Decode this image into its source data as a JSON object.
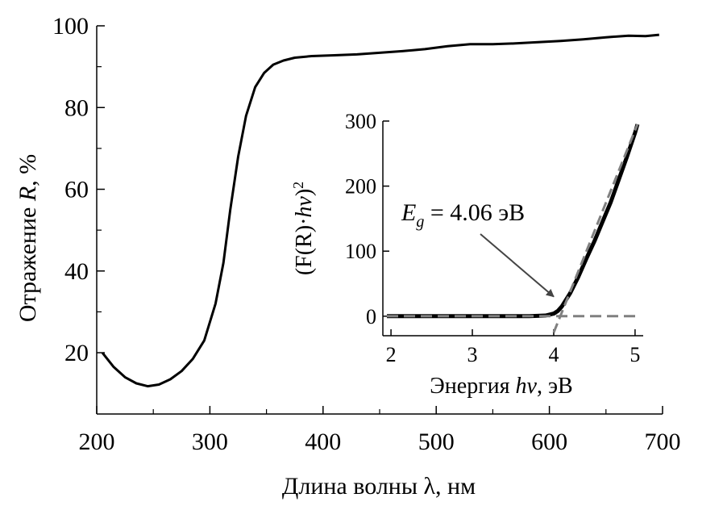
{
  "chart_data": [
    {
      "type": "line",
      "xlabel": "Длина волны λ, нм",
      "ylabel_prefix": "Отражение ",
      "ylabel_var": "R",
      "ylabel_suffix": ", %",
      "xlim": [
        200,
        700
      ],
      "ylim": [
        5,
        100
      ],
      "xticks": [
        200,
        300,
        400,
        500,
        600,
        700
      ],
      "yticks": [
        20,
        40,
        60,
        80,
        100
      ],
      "series": [
        {
          "color": "#000000",
          "x": [
            205,
            215,
            225,
            235,
            245,
            255,
            265,
            275,
            285,
            295,
            305,
            312,
            318,
            325,
            332,
            340,
            348,
            356,
            365,
            375,
            390,
            410,
            430,
            450,
            470,
            490,
            510,
            530,
            550,
            570,
            590,
            610,
            630,
            650,
            670,
            685,
            697
          ],
          "y": [
            20,
            16.5,
            14,
            12.5,
            11.8,
            12.2,
            13.5,
            15.5,
            18.5,
            23,
            32,
            42,
            55,
            68,
            78,
            85,
            88.5,
            90.5,
            91.5,
            92.2,
            92.6,
            92.8,
            93,
            93.4,
            93.8,
            94.3,
            95,
            95.5,
            95.5,
            95.7,
            96,
            96.3,
            96.7,
            97.2,
            97.6,
            97.5,
            97.8
          ]
        }
      ]
    },
    {
      "type": "line",
      "xlabel_prefix": "Энергия ",
      "xlabel_var": "hν",
      "xlabel_suffix": ", эВ",
      "ylabel_left": "(F(R)·",
      "ylabel_var": "hν",
      "ylabel_right": ")",
      "ylabel_sup": "2",
      "xlim": [
        1.9,
        5.1
      ],
      "ylim": [
        -30,
        300
      ],
      "xticks": [
        2,
        3,
        4,
        5
      ],
      "yticks": [
        0,
        100,
        200,
        300
      ],
      "series": [
        {
          "color": "#000000",
          "x": [
            1.95,
            2.2,
            2.5,
            2.8,
            3.1,
            3.4,
            3.7,
            3.9,
            4.0,
            4.05,
            4.1,
            4.15,
            4.2,
            4.3,
            4.4,
            4.5,
            4.6,
            4.7,
            4.8,
            4.9,
            5.0,
            5.03
          ],
          "y": [
            0,
            0,
            0,
            0,
            0,
            0,
            0,
            1,
            4,
            8,
            15,
            25,
            35,
            60,
            88,
            115,
            145,
            175,
            210,
            245,
            282,
            295
          ]
        },
        {
          "color": "#808080",
          "dashed": true,
          "x": [
            1.95,
            5.05
          ],
          "y": [
            0,
            0
          ]
        },
        {
          "color": "#808080",
          "dashed": true,
          "x": [
            4.0,
            5.03
          ],
          "y": [
            -25,
            295
          ]
        }
      ],
      "annotation": {
        "var_main": "E",
        "var_sub": "g",
        "text": " = 4.06 эВ",
        "arrow_to": [
          4.0,
          30
        ]
      }
    }
  ]
}
